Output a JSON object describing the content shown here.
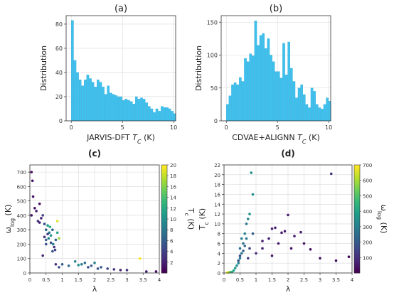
{
  "chart_data": [
    {
      "type": "bar",
      "title": "(a)",
      "xlabel_main": "JARVIS-DFT ",
      "xlabel_var": "T",
      "xlabel_sub": "C",
      "xlabel_unit": " (K)",
      "ylabel": "Distribution",
      "xlim": [
        -0.5,
        10.2
      ],
      "ylim": [
        0,
        87
      ],
      "xticks": [
        0,
        5,
        10
      ],
      "yticks": [
        0,
        20,
        40,
        60,
        80
      ],
      "grid": true,
      "color": "#40c0ec",
      "bin_start": 0,
      "bin_width": 0.25,
      "values": [
        83,
        50,
        40,
        34,
        29,
        34,
        38,
        35,
        32,
        28,
        34,
        32,
        28,
        22,
        29,
        23,
        22,
        21,
        20,
        20,
        17,
        18,
        17,
        16,
        14,
        20,
        18,
        19,
        18,
        15,
        12,
        10,
        7,
        10,
        8,
        12,
        11,
        11,
        10,
        8,
        6
      ]
    },
    {
      "type": "bar",
      "title": "(b)",
      "xlabel_main": "CDVAE+ALIGNN ",
      "xlabel_var": "T",
      "xlabel_sub": "C",
      "xlabel_unit": " (K)",
      "ylabel": "Distribution",
      "xlim": [
        -0.5,
        10.2
      ],
      "ylim": [
        0,
        160
      ],
      "xticks": [
        0,
        5,
        10
      ],
      "yticks": [
        0,
        50,
        100,
        150
      ],
      "grid": true,
      "color": "#40c0ec",
      "bin_start": 0,
      "bin_width": 0.25,
      "values": [
        25,
        38,
        55,
        58,
        55,
        66,
        60,
        95,
        90,
        102,
        99,
        152,
        115,
        130,
        133,
        110,
        125,
        100,
        90,
        75,
        75,
        65,
        118,
        70,
        120,
        80,
        60,
        35,
        50,
        55,
        40,
        25,
        20,
        50,
        45,
        25,
        20,
        18,
        25,
        35,
        30
      ]
    },
    {
      "type": "scatter",
      "title": "(c)",
      "xlabel": "λ",
      "ylabel_main": "ω",
      "ylabel_sub": "log",
      "ylabel_unit": " (K)",
      "xlim": [
        0,
        4
      ],
      "ylim": [
        0,
        750
      ],
      "xticks": [
        0,
        0.5,
        1,
        1.5,
        2,
        2.5,
        3,
        3.5,
        4
      ],
      "xtick_labels": [
        "0",
        "0.5",
        "1",
        "1.5",
        "2",
        "2.5",
        "3",
        "3.5",
        "4"
      ],
      "yticks": [
        0,
        100,
        200,
        300,
        400,
        500,
        600,
        700
      ],
      "grid": true,
      "colorbar": {
        "label_main": "T",
        "label_sub": "c",
        "label_unit": " (K)",
        "min": 0,
        "max": 20,
        "ticks": [
          2,
          4,
          6,
          8,
          10,
          12,
          14,
          16,
          18,
          20
        ]
      },
      "points": [
        {
          "x": 0.05,
          "y": 700,
          "c": 0.5
        },
        {
          "x": 0.08,
          "y": 640,
          "c": 1
        },
        {
          "x": 0.1,
          "y": 530,
          "c": 1
        },
        {
          "x": 0.15,
          "y": 450,
          "c": 1
        },
        {
          "x": 0.05,
          "y": 400,
          "c": 1
        },
        {
          "x": 0.2,
          "y": 430,
          "c": 2
        },
        {
          "x": 0.3,
          "y": 480,
          "c": 1
        },
        {
          "x": 0.35,
          "y": 380,
          "c": 2
        },
        {
          "x": 0.25,
          "y": 360,
          "c": 3
        },
        {
          "x": 0.4,
          "y": 400,
          "c": 4
        },
        {
          "x": 0.3,
          "y": 350,
          "c": 2
        },
        {
          "x": 0.45,
          "y": 340,
          "c": 5
        },
        {
          "x": 0.5,
          "y": 300,
          "c": 6
        },
        {
          "x": 0.55,
          "y": 330,
          "c": 11
        },
        {
          "x": 0.6,
          "y": 280,
          "c": 8
        },
        {
          "x": 0.58,
          "y": 240,
          "c": 9
        },
        {
          "x": 0.5,
          "y": 200,
          "c": 5
        },
        {
          "x": 0.45,
          "y": 250,
          "c": 3
        },
        {
          "x": 0.65,
          "y": 260,
          "c": 10
        },
        {
          "x": 0.7,
          "y": 300,
          "c": 7
        },
        {
          "x": 0.62,
          "y": 320,
          "c": 12
        },
        {
          "x": 0.55,
          "y": 270,
          "c": 4
        },
        {
          "x": 0.5,
          "y": 230,
          "c": 6
        },
        {
          "x": 0.4,
          "y": 120,
          "c": 2
        },
        {
          "x": 0.65,
          "y": 210,
          "c": 5
        },
        {
          "x": 0.72,
          "y": 200,
          "c": 8
        },
        {
          "x": 0.75,
          "y": 180,
          "c": 3
        },
        {
          "x": 0.7,
          "y": 150,
          "c": 5
        },
        {
          "x": 0.8,
          "y": 230,
          "c": 6
        },
        {
          "x": 0.78,
          "y": 160,
          "c": 4
        },
        {
          "x": 0.85,
          "y": 360,
          "c": 19
        },
        {
          "x": 0.9,
          "y": 240,
          "c": 17
        },
        {
          "x": 0.85,
          "y": 280,
          "c": 12
        },
        {
          "x": 0.8,
          "y": 60,
          "c": 3
        },
        {
          "x": 0.9,
          "y": 40,
          "c": 5
        },
        {
          "x": 1.0,
          "y": 60,
          "c": 6
        },
        {
          "x": 1.2,
          "y": 50,
          "c": 7
        },
        {
          "x": 1.4,
          "y": 80,
          "c": 9
        },
        {
          "x": 1.5,
          "y": 55,
          "c": 10
        },
        {
          "x": 1.6,
          "y": 60,
          "c": 8
        },
        {
          "x": 1.7,
          "y": 70,
          "c": 7
        },
        {
          "x": 1.8,
          "y": 40,
          "c": 5
        },
        {
          "x": 1.9,
          "y": 50,
          "c": 6
        },
        {
          "x": 2.0,
          "y": 70,
          "c": 9
        },
        {
          "x": 2.1,
          "y": 30,
          "c": 5
        },
        {
          "x": 2.2,
          "y": 40,
          "c": 6
        },
        {
          "x": 2.4,
          "y": 30,
          "c": 4
        },
        {
          "x": 2.6,
          "y": 25,
          "c": 3
        },
        {
          "x": 2.8,
          "y": 20,
          "c": 2
        },
        {
          "x": 3.0,
          "y": 20,
          "c": 3
        },
        {
          "x": 3.4,
          "y": 100,
          "c": 20
        },
        {
          "x": 3.6,
          "y": 10,
          "c": 2
        },
        {
          "x": 3.9,
          "y": 10,
          "c": 1
        }
      ]
    },
    {
      "type": "scatter",
      "title": "(d)",
      "xlabel": "λ",
      "ylabel_main": "T",
      "ylabel_sub": "c",
      "ylabel_unit": " (K)",
      "xlim": [
        0,
        4
      ],
      "ylim": [
        0,
        22
      ],
      "xticks": [
        0,
        0.5,
        1,
        1.5,
        2,
        2.5,
        3,
        3.5,
        4
      ],
      "xtick_labels": [
        "0",
        "0.5",
        "1",
        "1.5",
        "2",
        "2.5",
        "3",
        "3.5",
        "4"
      ],
      "yticks": [
        0,
        2,
        4,
        6,
        8,
        10,
        12,
        14,
        16,
        18,
        20,
        22
      ],
      "grid": true,
      "colorbar": {
        "label_main": "ω",
        "label_sub": "log",
        "label_unit": " (K)",
        "min": 0,
        "max": 700,
        "ticks": [
          100,
          200,
          300,
          400,
          500,
          600,
          700
        ]
      },
      "points": [
        {
          "x": 0.1,
          "y": 0.1,
          "c": 700
        },
        {
          "x": 0.15,
          "y": 0.1,
          "c": 600
        },
        {
          "x": 0.2,
          "y": 0.2,
          "c": 500
        },
        {
          "x": 0.25,
          "y": 0.2,
          "c": 450
        },
        {
          "x": 0.3,
          "y": 0.5,
          "c": 400
        },
        {
          "x": 0.35,
          "y": 1.0,
          "c": 380
        },
        {
          "x": 0.4,
          "y": 1.5,
          "c": 350
        },
        {
          "x": 0.45,
          "y": 2.0,
          "c": 330
        },
        {
          "x": 0.5,
          "y": 3.0,
          "c": 300
        },
        {
          "x": 0.55,
          "y": 4.0,
          "c": 280
        },
        {
          "x": 0.5,
          "y": 5.0,
          "c": 260
        },
        {
          "x": 0.6,
          "y": 6.0,
          "c": 250
        },
        {
          "x": 0.55,
          "y": 7.0,
          "c": 300
        },
        {
          "x": 0.65,
          "y": 8.0,
          "c": 320
        },
        {
          "x": 0.7,
          "y": 10.0,
          "c": 280
        },
        {
          "x": 0.75,
          "y": 11.0,
          "c": 330
        },
        {
          "x": 0.8,
          "y": 12.0,
          "c": 360
        },
        {
          "x": 0.9,
          "y": 16.0,
          "c": 350
        },
        {
          "x": 0.85,
          "y": 20.4,
          "c": 350
        },
        {
          "x": 0.6,
          "y": 4.5,
          "c": 200
        },
        {
          "x": 0.65,
          "y": 5.5,
          "c": 240
        },
        {
          "x": 0.7,
          "y": 7.0,
          "c": 270
        },
        {
          "x": 0.5,
          "y": 3.5,
          "c": 150
        },
        {
          "x": 0.45,
          "y": 2.5,
          "c": 180
        },
        {
          "x": 0.75,
          "y": 3.0,
          "c": 120
        },
        {
          "x": 0.8,
          "y": 5.0,
          "c": 160
        },
        {
          "x": 0.9,
          "y": 8.0,
          "c": 200
        },
        {
          "x": 1.0,
          "y": 4.0,
          "c": 80
        },
        {
          "x": 1.2,
          "y": 5.0,
          "c": 70
        },
        {
          "x": 1.4,
          "y": 7.0,
          "c": 60
        },
        {
          "x": 1.5,
          "y": 9.0,
          "c": 70
        },
        {
          "x": 1.6,
          "y": 9.2,
          "c": 60
        },
        {
          "x": 1.7,
          "y": 6.0,
          "c": 50
        },
        {
          "x": 1.8,
          "y": 8.2,
          "c": 60
        },
        {
          "x": 1.9,
          "y": 8.5,
          "c": 50
        },
        {
          "x": 2.0,
          "y": 11.8,
          "c": 70
        },
        {
          "x": 2.1,
          "y": 5.0,
          "c": 40
        },
        {
          "x": 2.2,
          "y": 7.5,
          "c": 50
        },
        {
          "x": 2.4,
          "y": 8.3,
          "c": 45
        },
        {
          "x": 2.5,
          "y": 6.0,
          "c": 35
        },
        {
          "x": 2.7,
          "y": 4.8,
          "c": 30
        },
        {
          "x": 3.0,
          "y": 3.0,
          "c": 30
        },
        {
          "x": 3.35,
          "y": 20.2,
          "c": 100
        },
        {
          "x": 3.5,
          "y": 2.5,
          "c": 20
        },
        {
          "x": 3.9,
          "y": 3.3,
          "c": 15
        },
        {
          "x": 1.5,
          "y": 3.5,
          "c": 50
        },
        {
          "x": 1.2,
          "y": 6.5,
          "c": 65
        }
      ]
    }
  ]
}
